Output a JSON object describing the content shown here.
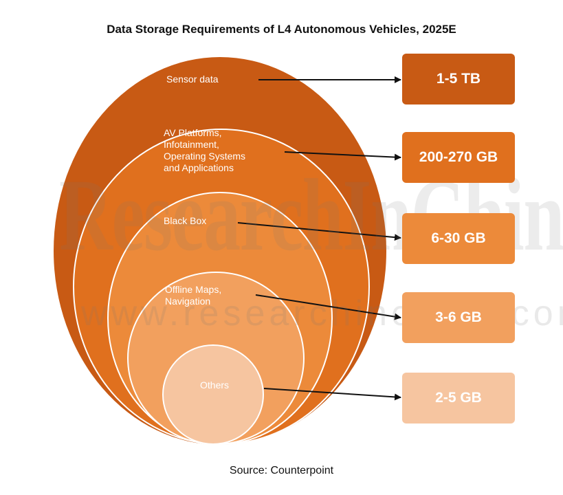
{
  "title": "Data Storage Requirements of L4 Autonomous Vehicles, 2025E",
  "source": "Source: Counterpoint",
  "watermark": {
    "brand": "ResearchInChina",
    "url": "www.researchinchina.com"
  },
  "layers": [
    {
      "label": "Sensor data",
      "value": "1-5 TB",
      "color": "#c85a14"
    },
    {
      "label": "AV Platforms,\nInfotainment,\nOperating Systems\nand Applications",
      "value": "200-270 GB",
      "color": "#e0701e"
    },
    {
      "label": "Black Box",
      "value": "6-30 GB",
      "color": "#ec8a3a"
    },
    {
      "label": "Offline Maps,\nNavigation",
      "value": "3-6 GB",
      "color": "#f2a05e"
    },
    {
      "label": "Others",
      "value": "2-5 GB",
      "color": "#f6c5a0"
    }
  ]
}
